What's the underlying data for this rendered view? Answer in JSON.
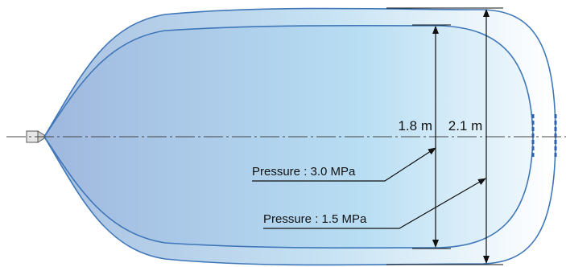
{
  "dimensions": {
    "inner_height": "1.8 m",
    "outer_height": "2.1 m"
  },
  "callouts": {
    "inner_pressure": "Pressure : 3.0  MPa",
    "outer_pressure": "Pressure : 1.5  MPa"
  },
  "colors": {
    "body_left": "#a9c1e2",
    "body_right": "#ffffff",
    "outline": "#3f77b8",
    "dimension_line": "#111111"
  }
}
